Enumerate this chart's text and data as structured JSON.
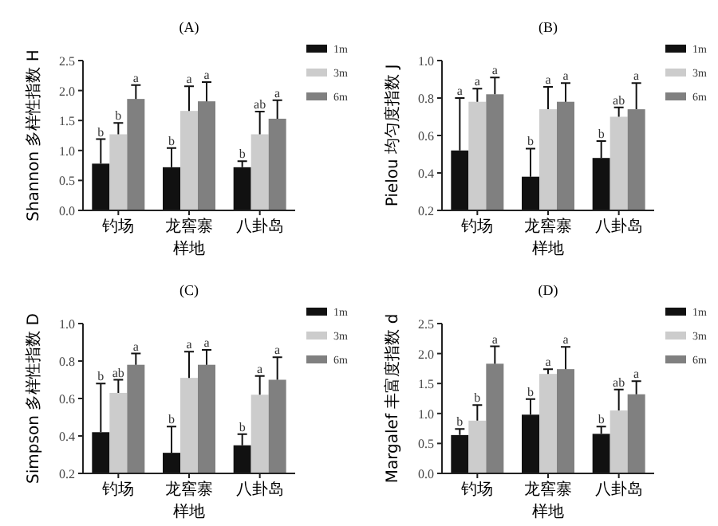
{
  "chart_data": [
    {
      "type": "bar",
      "title": "(A)",
      "xlabel": "样地",
      "ylabel": "Shannon 多样性指数 H",
      "categories": [
        "钓场",
        "龙窖寨",
        "八卦岛"
      ],
      "ylim": [
        0,
        2.5
      ],
      "yticks": [
        {
          "value": 0,
          "label": "0.0"
        },
        0.5,
        {
          "value": 1,
          "label": "1.0"
        },
        1.5,
        {
          "value": 2,
          "label": "2.0"
        },
        2.5
      ],
      "legend": "top right",
      "series": [
        {
          "name": "1m",
          "color": "#111111",
          "values": [
            0.78,
            0.72,
            0.72
          ],
          "errors": [
            [
              0.78,
              1.19
            ],
            [
              0.72,
              1.04
            ],
            [
              0.72,
              0.82
            ]
          ],
          "value_labels": [
            "b",
            "b",
            "b"
          ]
        },
        {
          "name": "3m",
          "color": "#cccccc",
          "values": [
            1.27,
            1.66,
            1.27
          ],
          "errors": [
            [
              1.27,
              1.46
            ],
            [
              1.66,
              2.07
            ],
            [
              1.27,
              1.65
            ]
          ],
          "value_labels": [
            "b",
            "a",
            "ab"
          ]
        },
        {
          "name": "6m",
          "color": "#808080",
          "values": [
            1.86,
            1.82,
            1.53
          ],
          "errors": [
            [
              1.86,
              2.09
            ],
            [
              1.82,
              2.14
            ],
            [
              1.53,
              1.84
            ]
          ],
          "value_labels": [
            "a",
            "a",
            "a"
          ]
        }
      ]
    },
    {
      "type": "bar",
      "title": "(B)",
      "xlabel": "样地",
      "ylabel": "Pielou 均匀度指数 J",
      "categories": [
        "钓场",
        "龙窖寨",
        "八卦岛"
      ],
      "ylim": [
        0.2,
        1.0
      ],
      "yticks": [
        0.2,
        0.4,
        0.6,
        0.8,
        {
          "value": 1,
          "label": "1.0"
        }
      ],
      "legend": "top right",
      "annotations": [
        {
          "text": "a",
          "x": "钓场",
          "y": 0.8
        }
      ],
      "series": [
        {
          "name": "1m",
          "color": "#111111",
          "values": [
            0.52,
            0.38,
            0.48
          ],
          "errors": [
            [
              0.52,
              0.8
            ],
            [
              0.38,
              0.53
            ],
            [
              0.48,
              0.57
            ]
          ],
          "value_labels": [
            null,
            "b",
            "b"
          ]
        },
        {
          "name": "3m",
          "color": "#cccccc",
          "values": [
            0.78,
            0.74,
            0.7
          ],
          "errors": [
            [
              0.78,
              0.85
            ],
            [
              0.74,
              0.86
            ],
            [
              0.7,
              0.75
            ]
          ],
          "value_labels": [
            "a",
            "a",
            "ab"
          ]
        },
        {
          "name": "6m",
          "color": "#808080",
          "values": [
            0.82,
            0.78,
            0.74
          ],
          "errors": [
            [
              0.82,
              0.91
            ],
            [
              0.78,
              0.88
            ],
            [
              0.74,
              0.88
            ]
          ],
          "value_labels": [
            "a",
            "a",
            "a"
          ]
        }
      ]
    },
    {
      "type": "bar",
      "title": "(C)",
      "xlabel": "样地",
      "ylabel": "Simpson 多样性指数 D",
      "categories": [
        "钓场",
        "龙窖寨",
        "八卦岛"
      ],
      "ylim": [
        0.2,
        1.0
      ],
      "yticks": [
        0.2,
        0.4,
        0.6,
        0.8,
        {
          "value": 1,
          "label": "1.0"
        }
      ],
      "legend": "top right",
      "annotations": [
        {
          "text": "b",
          "x": "钓场",
          "y": 0.68
        }
      ],
      "series": [
        {
          "name": "1m",
          "color": "#111111",
          "values": [
            0.42,
            0.31,
            0.35
          ],
          "errors": [
            [
              0.42,
              0.68
            ],
            [
              0.31,
              0.45
            ],
            [
              0.35,
              0.41
            ]
          ],
          "value_labels": [
            null,
            "b",
            "b"
          ]
        },
        {
          "name": "3m",
          "color": "#cccccc",
          "values": [
            0.63,
            0.71,
            0.62
          ],
          "errors": [
            [
              0.63,
              0.7
            ],
            [
              0.71,
              0.85
            ],
            [
              0.62,
              0.72
            ]
          ],
          "value_labels": [
            "ab",
            "a",
            "a"
          ]
        },
        {
          "name": "6m",
          "color": "#808080",
          "values": [
            0.78,
            0.78,
            0.7
          ],
          "errors": [
            [
              0.78,
              0.84
            ],
            [
              0.78,
              0.86
            ],
            [
              0.7,
              0.82
            ]
          ],
          "value_labels": [
            "a",
            "a",
            "a"
          ]
        }
      ]
    },
    {
      "type": "bar",
      "title": "(D)",
      "xlabel": "样地",
      "ylabel": "Margalef 丰富度指数 d",
      "categories": [
        "钓场",
        "龙窖寨",
        "八卦岛"
      ],
      "ylim": [
        0,
        2.5
      ],
      "yticks": [
        {
          "value": 0,
          "label": "0.0"
        },
        0.5,
        {
          "value": 1,
          "label": "1.0"
        },
        1.5,
        {
          "value": 2,
          "label": "2.0"
        },
        2.5
      ],
      "legend": "top right",
      "series": [
        {
          "name": "1m",
          "color": "#111111",
          "values": [
            0.64,
            0.98,
            0.66
          ],
          "errors": [
            [
              0.64,
              0.74
            ],
            [
              0.98,
              1.24
            ],
            [
              0.66,
              0.78
            ]
          ],
          "value_labels": [
            "b",
            "b",
            "b"
          ]
        },
        {
          "name": "3m",
          "color": "#cccccc",
          "values": [
            0.88,
            1.66,
            1.05
          ],
          "errors": [
            [
              0.88,
              1.14
            ],
            [
              1.66,
              1.74
            ],
            [
              1.05,
              1.4
            ]
          ],
          "value_labels": [
            "b",
            "a",
            "ab"
          ]
        },
        {
          "name": "6m",
          "color": "#808080",
          "values": [
            1.83,
            1.74,
            1.32
          ],
          "errors": [
            [
              1.83,
              2.12
            ],
            [
              1.74,
              2.11
            ],
            [
              1.32,
              1.54
            ]
          ],
          "value_labels": [
            "a",
            "a",
            "a"
          ]
        }
      ]
    }
  ]
}
